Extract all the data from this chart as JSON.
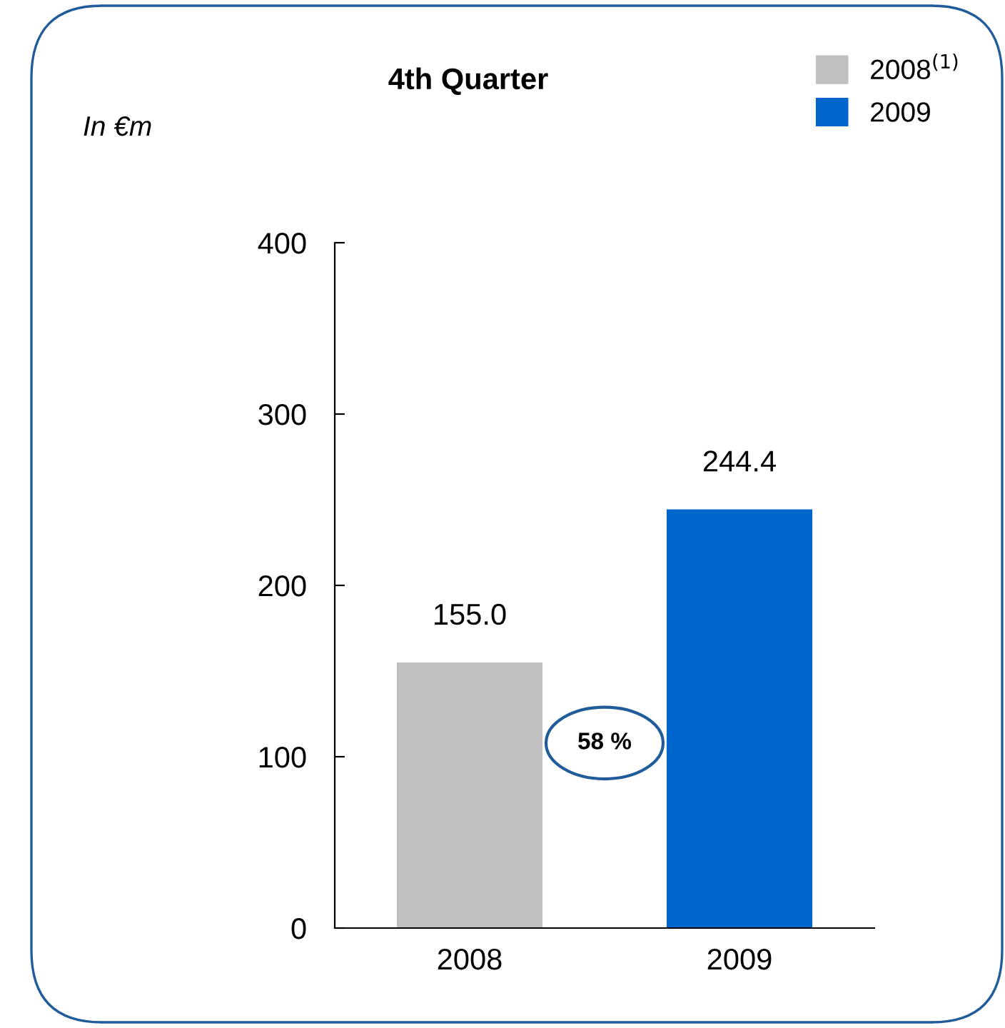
{
  "chart_data": {
    "type": "bar",
    "title": "4th Quarter",
    "categories": [
      "2008",
      "2009"
    ],
    "series": [
      {
        "name": "2008$^{(1)}$",
        "color": "#c0c0c0",
        "values": [
          155.0,
          null
        ],
        "value_labels": [
          "155.0",
          null
        ]
      },
      {
        "name": "2009",
        "color": "#0066cc",
        "values": [
          null,
          244.4
        ],
        "value_labels": [
          null,
          "244.4"
        ]
      }
    ],
    "ylim": [
      0,
      400
    ],
    "yticks": [
      0,
      100,
      200,
      300,
      400
    ],
    "grid": false,
    "legend": "top right",
    "annotations": [
      "In €m",
      "58 %"
    ]
  }
}
